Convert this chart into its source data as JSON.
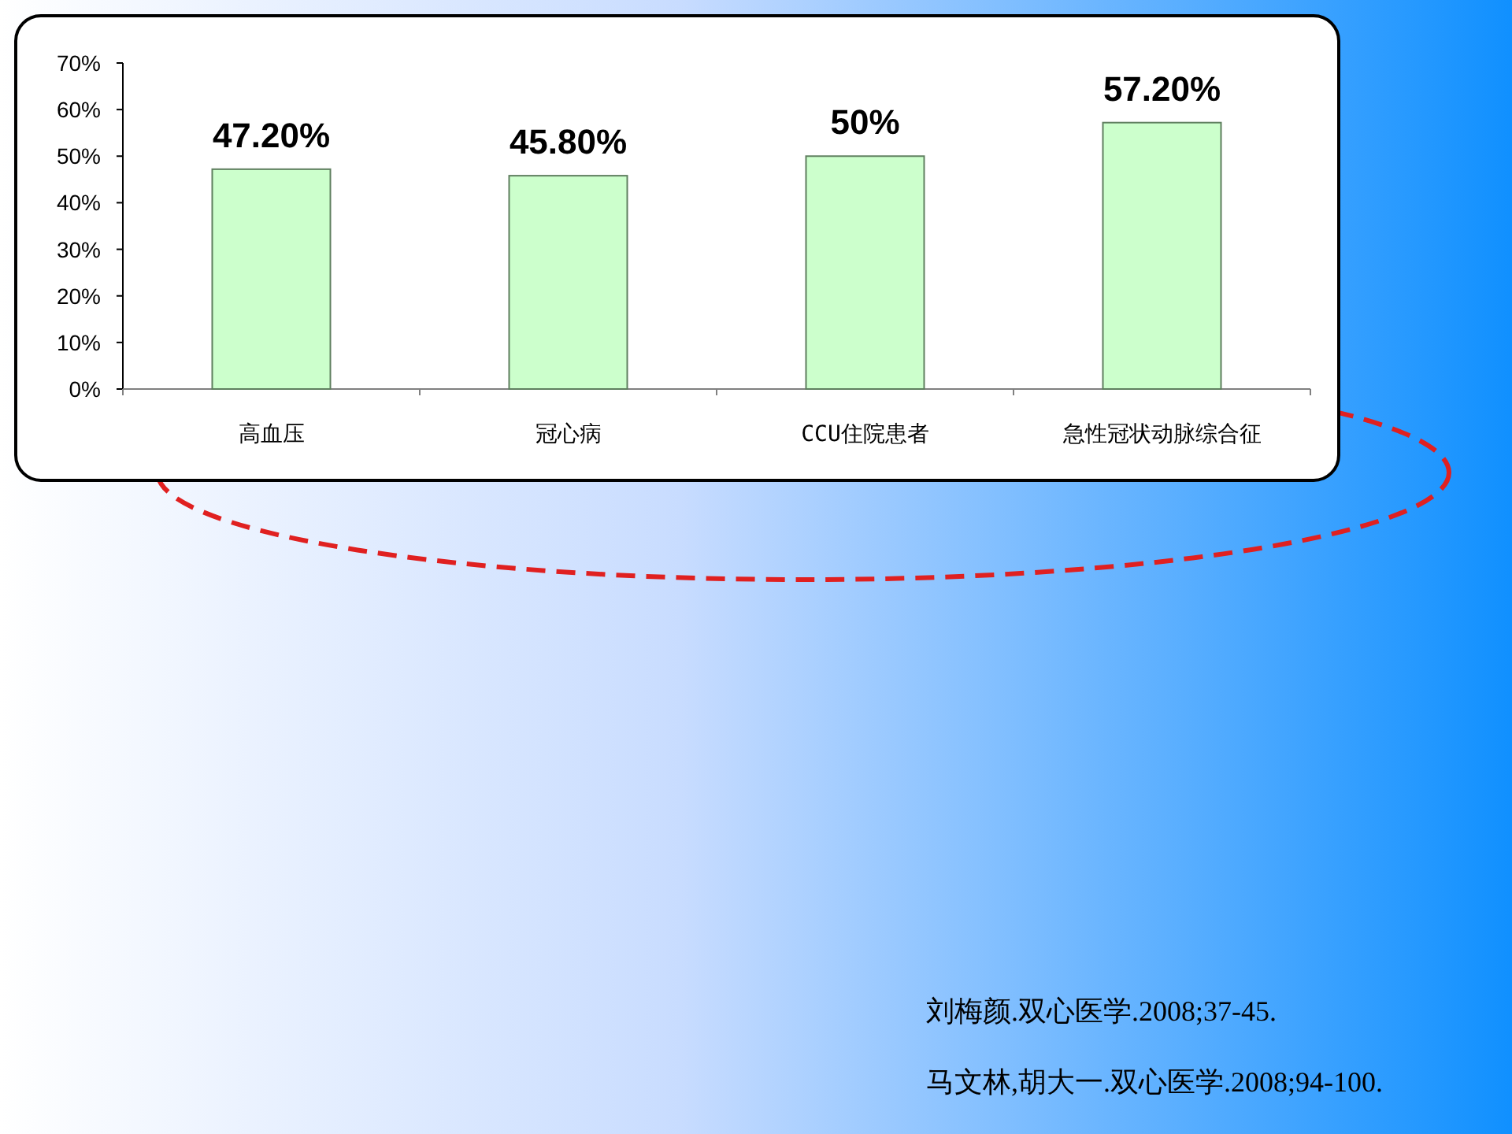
{
  "chart_data": {
    "type": "bar",
    "categories": [
      "高血压",
      "冠心病",
      "CCU住院患者",
      "急性冠状动脉综合征"
    ],
    "values": [
      47.2,
      45.8,
      50,
      57.2
    ],
    "value_labels": [
      "47.20%",
      "45.80%",
      "50%",
      "57.20%"
    ],
    "color": "#ccffcc",
    "ylim": [
      0,
      70
    ],
    "yticks": [
      {
        "value": 0,
        "label": "0%"
      },
      {
        "value": 10,
        "label": "10%"
      },
      {
        "value": 20,
        "label": "20%"
      },
      {
        "value": 30,
        "label": "30%"
      },
      {
        "value": 40,
        "label": "40%"
      },
      {
        "value": 50,
        "label": "50%"
      },
      {
        "value": 60,
        "label": "60%"
      },
      {
        "value": 70,
        "label": "70%"
      }
    ],
    "grid": false,
    "annotations": [
      "刘梅颜.双心医学.2008;37-45.",
      "马文林,胡大一.双心医学.2008;94-100."
    ]
  }
}
